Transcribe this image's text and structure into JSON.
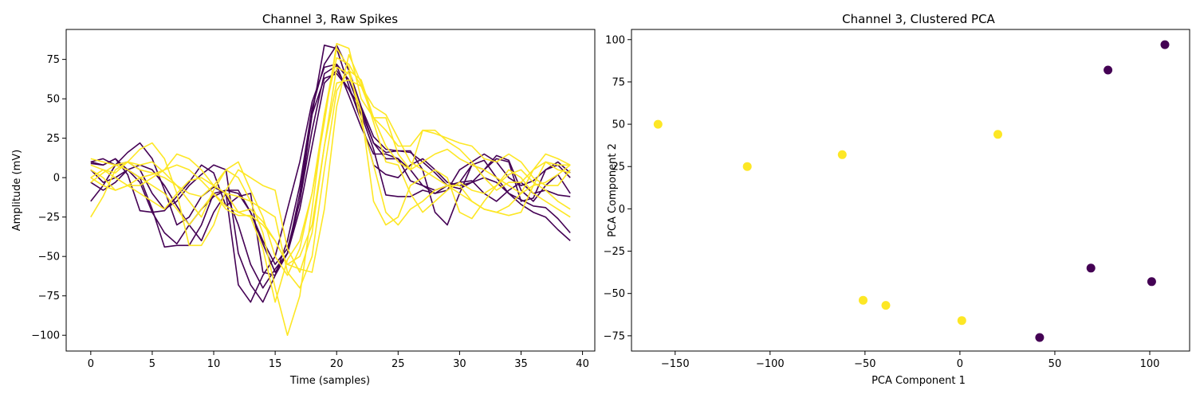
{
  "chart_data": [
    {
      "type": "line",
      "title": "Channel 3, Raw Spikes",
      "xlabel": "Time (samples)",
      "ylabel": "Amplitude (mV)",
      "xlim": [
        -2,
        41
      ],
      "ylim": [
        -110,
        94
      ],
      "xticks": [
        0,
        5,
        10,
        15,
        20,
        25,
        30,
        35,
        40
      ],
      "yticks": [
        -100,
        -75,
        -50,
        -25,
        0,
        25,
        50,
        75
      ],
      "colors": {
        "cluster_0": "#440154",
        "cluster_1": "#fde725"
      },
      "x": [
        0,
        1,
        2,
        3,
        4,
        5,
        6,
        7,
        8,
        9,
        10,
        11,
        12,
        13,
        14,
        15,
        16,
        17,
        18,
        19,
        20,
        21,
        22,
        23,
        24,
        25,
        26,
        27,
        28,
        29,
        30,
        31,
        32,
        33,
        34,
        35,
        36,
        37,
        38,
        39
      ],
      "series": [
        {
          "cluster": 0,
          "values": [
            10,
            12,
            8,
            16,
            22,
            12,
            -8,
            -30,
            -25,
            -12,
            -6,
            -10,
            -68,
            -79,
            -62,
            -50,
            -20,
            10,
            48,
            70,
            72,
            62,
            42,
            22,
            16,
            17,
            17,
            5,
            -22,
            -30,
            -10,
            8,
            11,
            0,
            -10,
            -17,
            -22,
            -25,
            -33,
            -40
          ]
        },
        {
          "cluster": 0,
          "values": [
            -15,
            -5,
            8,
            10,
            5,
            -10,
            -20,
            -15,
            -5,
            2,
            8,
            5,
            -48,
            -68,
            -79,
            -62,
            -40,
            -5,
            44,
            72,
            84,
            68,
            45,
            26,
            18,
            17,
            16,
            10,
            3,
            -5,
            -7,
            -3,
            0,
            -3,
            -10,
            -14,
            -18,
            -19,
            -26,
            -35
          ]
        },
        {
          "cluster": 0,
          "values": [
            10,
            8,
            12,
            5,
            0,
            -20,
            -44,
            -43,
            -43,
            -30,
            -10,
            -8,
            -10,
            -22,
            -42,
            -60,
            -48,
            -20,
            20,
            60,
            68,
            56,
            40,
            18,
            -11,
            -12,
            -12,
            -8,
            -10,
            -5,
            -3,
            -2,
            -10,
            -15,
            -8,
            -3,
            -10,
            -8,
            -11,
            -12
          ]
        },
        {
          "cluster": 0,
          "values": [
            -3,
            -8,
            -3,
            5,
            8,
            5,
            -5,
            -18,
            -30,
            -40,
            -22,
            -10,
            -30,
            -55,
            -70,
            -58,
            -48,
            -15,
            40,
            84,
            82,
            58,
            36,
            8,
            2,
            0,
            8,
            12,
            5,
            -3,
            -5,
            -3,
            5,
            12,
            10,
            -15,
            -13,
            5,
            8,
            0
          ]
        },
        {
          "cluster": 0,
          "values": [
            9,
            8,
            12,
            2,
            -21,
            -22,
            -21,
            -12,
            -3,
            8,
            3,
            -18,
            -12,
            -10,
            -60,
            -62,
            -48,
            -10,
            40,
            63,
            66,
            56,
            44,
            22,
            12,
            12,
            5,
            -5,
            -8,
            -5,
            -3,
            8,
            5,
            14,
            11,
            -8,
            -15,
            -5,
            2,
            -10
          ]
        },
        {
          "cluster": 0,
          "values": [
            5,
            -3,
            0,
            5,
            -3,
            -22,
            -35,
            -42,
            -30,
            -20,
            -12,
            -8,
            -8,
            -22,
            -40,
            -55,
            -45,
            -15,
            30,
            66,
            71,
            52,
            32,
            15,
            15,
            12,
            -2,
            -5,
            -10,
            -8,
            5,
            10,
            15,
            10,
            0,
            -5,
            -2,
            5,
            10,
            3
          ]
        },
        {
          "cluster": 1,
          "values": [
            -25,
            -12,
            5,
            10,
            8,
            10,
            3,
            -5,
            -15,
            -25,
            -8,
            5,
            0,
            -15,
            -35,
            -70,
            -100,
            -75,
            -20,
            40,
            82,
            70,
            35,
            8,
            -22,
            -30,
            -20,
            -15,
            -8,
            -5,
            -5,
            -15,
            -20,
            -22,
            -24,
            -22,
            -5,
            10,
            8,
            8
          ]
        },
        {
          "cluster": 1,
          "values": [
            5,
            0,
            -8,
            -5,
            -5,
            0,
            5,
            15,
            12,
            5,
            -5,
            -10,
            -22,
            -20,
            -28,
            -40,
            -55,
            -58,
            -60,
            -20,
            45,
            78,
            60,
            35,
            10,
            8,
            -10,
            -22,
            -15,
            -8,
            -3,
            -8,
            -10,
            -5,
            2,
            5,
            -3,
            -8,
            -15,
            -20
          ]
        },
        {
          "cluster": 1,
          "values": [
            0,
            5,
            3,
            10,
            18,
            22,
            12,
            -10,
            -43,
            -43,
            -30,
            -8,
            5,
            0,
            -5,
            -8,
            -45,
            -60,
            -35,
            20,
            70,
            66,
            42,
            -15,
            -30,
            -25,
            -5,
            0,
            5,
            0,
            -22,
            -26,
            -15,
            -5,
            5,
            0,
            -10,
            -15,
            -20,
            -25
          ]
        },
        {
          "cluster": 1,
          "values": [
            -3,
            3,
            8,
            10,
            5,
            3,
            0,
            -5,
            -10,
            -12,
            -5,
            5,
            10,
            -8,
            -25,
            -50,
            -62,
            -45,
            -10,
            35,
            85,
            82,
            50,
            38,
            30,
            20,
            20,
            30,
            28,
            25,
            22,
            20,
            12,
            10,
            15,
            10,
            0,
            -5,
            -5,
            5
          ]
        },
        {
          "cluster": 1,
          "values": [
            12,
            10,
            8,
            5,
            0,
            -5,
            -10,
            -20,
            -30,
            -20,
            -10,
            -20,
            -24,
            -24,
            -30,
            -40,
            -55,
            -50,
            -30,
            20,
            60,
            62,
            58,
            45,
            40,
            25,
            10,
            5,
            0,
            -5,
            -10,
            -15,
            -20,
            -22,
            -18,
            -10,
            -5,
            -3,
            2,
            8
          ]
        },
        {
          "cluster": 1,
          "values": [
            8,
            5,
            0,
            -5,
            -10,
            -15,
            -20,
            -10,
            -2,
            0,
            -5,
            -10,
            -12,
            -15,
            -20,
            -25,
            -60,
            -70,
            -50,
            5,
            55,
            68,
            62,
            38,
            20,
            10,
            5,
            10,
            15,
            18,
            12,
            8,
            5,
            0,
            -5,
            -10,
            5,
            15,
            12,
            8
          ]
        },
        {
          "cluster": 1,
          "values": [
            0,
            -5,
            -8,
            -5,
            0,
            2,
            5,
            8,
            5,
            -2,
            -10,
            -18,
            -22,
            -25,
            -45,
            -79,
            -52,
            -40,
            -10,
            40,
            76,
            72,
            58,
            38,
            38,
            15,
            5,
            30,
            30,
            23,
            18,
            10,
            0,
            -8,
            -3,
            -3,
            5,
            10,
            5,
            3
          ]
        }
      ]
    },
    {
      "type": "scatter",
      "title": "Channel 3, Clustered PCA",
      "xlabel": "PCA Component 1",
      "ylabel": "PCA Component 2",
      "xlim": [
        -173,
        121
      ],
      "ylim": [
        -84,
        106
      ],
      "xticks": [
        -150,
        -100,
        -50,
        0,
        50,
        100
      ],
      "yticks": [
        -75,
        -50,
        -25,
        0,
        25,
        50,
        75,
        100
      ],
      "colors": {
        "cluster_0": "#440154",
        "cluster_1": "#fde725"
      },
      "points": [
        {
          "x": -159,
          "y": 50,
          "cluster": 1
        },
        {
          "x": -112,
          "y": 25,
          "cluster": 1
        },
        {
          "x": -62,
          "y": 32,
          "cluster": 1
        },
        {
          "x": -51,
          "y": -54,
          "cluster": 1
        },
        {
          "x": -39,
          "y": -57,
          "cluster": 1
        },
        {
          "x": 1,
          "y": -66,
          "cluster": 1
        },
        {
          "x": 20,
          "y": 44,
          "cluster": 1
        },
        {
          "x": 42,
          "y": -76,
          "cluster": 0
        },
        {
          "x": 69,
          "y": -35,
          "cluster": 0
        },
        {
          "x": 78,
          "y": 82,
          "cluster": 0
        },
        {
          "x": 101,
          "y": -43,
          "cluster": 0
        },
        {
          "x": 108,
          "y": 97,
          "cluster": 0
        }
      ]
    }
  ]
}
